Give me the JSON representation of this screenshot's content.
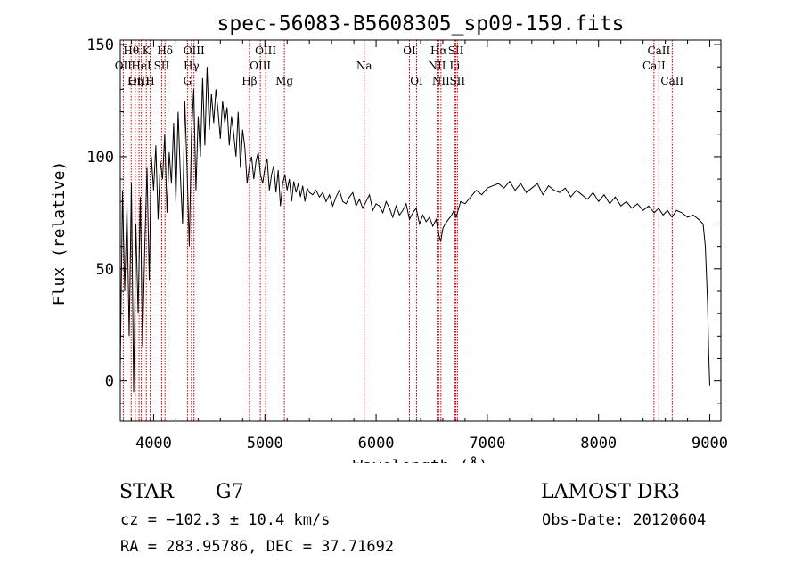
{
  "chart_data": {
    "type": "line",
    "title": "spec-56083-B5608305_sp09-159.fits",
    "xlabel": "Wavelength (Å)",
    "ylabel": "Flux (relative)",
    "xlim": [
      3700,
      9100
    ],
    "ylim": [
      -18,
      152
    ],
    "xticks": [
      4000,
      5000,
      6000,
      7000,
      8000,
      9000
    ],
    "yticks": [
      0,
      50,
      100,
      150
    ],
    "line_color": "#000000",
    "marker_color": "#cc0000",
    "series": [
      {
        "name": "flux",
        "x": [
          3700,
          3720,
          3740,
          3760,
          3780,
          3800,
          3820,
          3840,
          3860,
          3880,
          3900,
          3920,
          3940,
          3960,
          3980,
          4000,
          4020,
          4040,
          4060,
          4080,
          4100,
          4120,
          4140,
          4160,
          4180,
          4200,
          4220,
          4240,
          4260,
          4280,
          4300,
          4320,
          4340,
          4360,
          4380,
          4400,
          4420,
          4440,
          4460,
          4480,
          4500,
          4520,
          4540,
          4560,
          4580,
          4600,
          4620,
          4640,
          4660,
          4680,
          4700,
          4720,
          4740,
          4760,
          4780,
          4800,
          4820,
          4840,
          4860,
          4880,
          4900,
          4920,
          4940,
          4960,
          4980,
          5000,
          5020,
          5040,
          5060,
          5080,
          5100,
          5120,
          5140,
          5160,
          5180,
          5200,
          5220,
          5240,
          5260,
          5280,
          5300,
          5320,
          5340,
          5360,
          5380,
          5400,
          5430,
          5460,
          5490,
          5520,
          5550,
          5580,
          5610,
          5640,
          5670,
          5700,
          5730,
          5760,
          5790,
          5820,
          5850,
          5880,
          5910,
          5940,
          5970,
          6000,
          6030,
          6060,
          6090,
          6120,
          6150,
          6180,
          6210,
          6240,
          6270,
          6300,
          6330,
          6360,
          6390,
          6420,
          6450,
          6480,
          6510,
          6540,
          6560,
          6580,
          6600,
          6620,
          6650,
          6680,
          6700,
          6720,
          6760,
          6800,
          6850,
          6900,
          6950,
          7000,
          7050,
          7100,
          7150,
          7200,
          7250,
          7300,
          7350,
          7400,
          7450,
          7500,
          7550,
          7600,
          7650,
          7700,
          7750,
          7800,
          7850,
          7900,
          7950,
          8000,
          8050,
          8100,
          8150,
          8200,
          8250,
          8300,
          8350,
          8400,
          8450,
          8500,
          8540,
          8580,
          8620,
          8660,
          8700,
          8750,
          8800,
          8850,
          8900,
          8940,
          8960,
          8980,
          8990,
          9000
        ],
        "y": [
          5,
          85,
          40,
          78,
          20,
          88,
          -5,
          70,
          30,
          82,
          15,
          60,
          95,
          45,
          100,
          85,
          105,
          72,
          98,
          90,
          110,
          75,
          102,
          88,
          115,
          80,
          120,
          92,
          70,
          125,
          95,
          60,
          110,
          130,
          85,
          118,
          100,
          135,
          105,
          140,
          112,
          128,
          115,
          130,
          120,
          108,
          125,
          115,
          122,
          105,
          118,
          110,
          100,
          120,
          95,
          112,
          104,
          88,
          96,
          100,
          90,
          98,
          102,
          92,
          88,
          95,
          99,
          85,
          92,
          96,
          84,
          94,
          78,
          88,
          92,
          85,
          90,
          80,
          89,
          84,
          88,
          82,
          87,
          80,
          86,
          84,
          83,
          85,
          82,
          84,
          80,
          83,
          78,
          82,
          85,
          80,
          79,
          82,
          84,
          78,
          81,
          77,
          80,
          83,
          76,
          79,
          78,
          75,
          80,
          77,
          73,
          78,
          74,
          76,
          79,
          72,
          75,
          77,
          70,
          74,
          71,
          73,
          69,
          72,
          66,
          62,
          68,
          70,
          72,
          74,
          76,
          73,
          80,
          79,
          82,
          85,
          83,
          86,
          87,
          88,
          86,
          89,
          85,
          88,
          84,
          86,
          88,
          83,
          87,
          85,
          84,
          86,
          82,
          85,
          83,
          81,
          84,
          80,
          83,
          79,
          82,
          78,
          80,
          77,
          79,
          76,
          78,
          75,
          77,
          74,
          76,
          73,
          76,
          75,
          73,
          74,
          72,
          70,
          60,
          35,
          12,
          -2
        ]
      }
    ],
    "line_markers": [
      {
        "label": "Hθ",
        "x": 3798,
        "row": 1
      },
      {
        "label": "OII",
        "x": 3727,
        "row": 2
      },
      {
        "label": "OIII",
        "x": 3869,
        "row": 3
      },
      {
        "label": "Hη",
        "x": 3835,
        "row": 3
      },
      {
        "label": "HeI",
        "x": 3889,
        "row": 2
      },
      {
        "label": "K",
        "x": 3934,
        "row": 1
      },
      {
        "label": "H",
        "x": 3968,
        "row": 3
      },
      {
        "label": "SII",
        "x": 4072,
        "row": 2
      },
      {
        "label": "Hδ",
        "x": 4102,
        "row": 1
      },
      {
        "label": "G",
        "x": 4304,
        "row": 3
      },
      {
        "label": "Hγ",
        "x": 4340,
        "row": 2
      },
      {
        "label": "OIII",
        "x": 4363,
        "row": 1
      },
      {
        "label": "Hβ",
        "x": 4861,
        "row": 3
      },
      {
        "label": "OIII",
        "x": 4959,
        "row": 2
      },
      {
        "label": "OIII",
        "x": 5007,
        "row": 1
      },
      {
        "label": "Mg",
        "x": 5175,
        "row": 3
      },
      {
        "label": "Na",
        "x": 5893,
        "row": 2
      },
      {
        "label": "OI",
        "x": 6300,
        "row": 1
      },
      {
        "label": "OI",
        "x": 6364,
        "row": 3
      },
      {
        "label": "NII",
        "x": 6548,
        "row": 2
      },
      {
        "label": "Hα",
        "x": 6563,
        "row": 1
      },
      {
        "label": "NII",
        "x": 6583,
        "row": 3
      },
      {
        "label": "Li",
        "x": 6708,
        "row": 2
      },
      {
        "label": "SII",
        "x": 6717,
        "row": 1
      },
      {
        "label": "SII",
        "x": 6731,
        "row": 3
      },
      {
        "label": "CaII",
        "x": 8498,
        "row": 2
      },
      {
        "label": "CaII",
        "x": 8542,
        "row": 1
      },
      {
        "label": "CaII",
        "x": 8662,
        "row": 3
      }
    ]
  },
  "info": {
    "object_class": "STAR",
    "subclass": "G7",
    "survey": "LAMOST DR3",
    "redshift": "cz = −102.3 ± 10.4 km/s",
    "obs_date": "Obs-Date: 20120604",
    "coords": "RA = 283.95786, DEC =  37.71692"
  }
}
